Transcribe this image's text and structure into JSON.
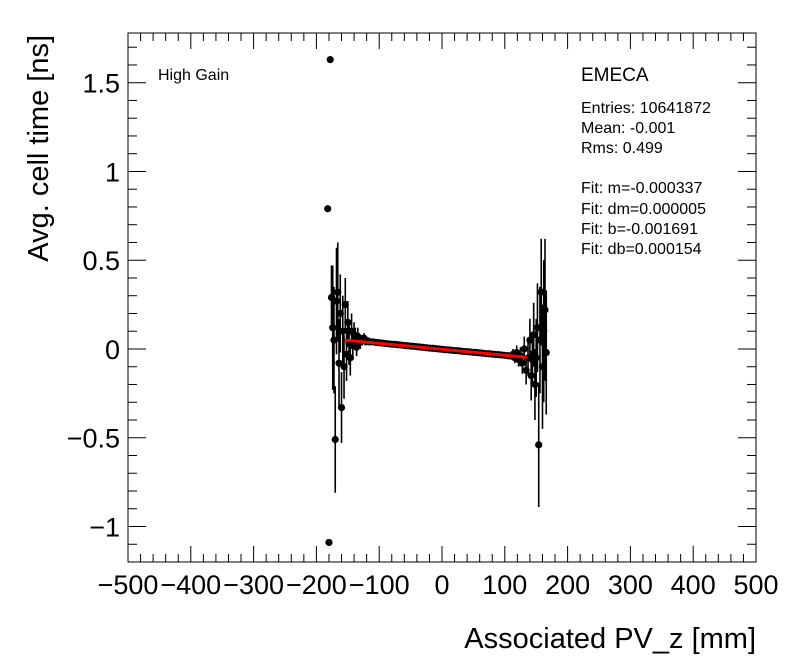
{
  "chart_data": {
    "type": "scatter",
    "title": "",
    "xlabel": "Associated PV_z [mm]",
    "ylabel": "Avg. cell time [ns]",
    "xlim": [
      -500,
      500
    ],
    "ylim": [
      -1.2,
      1.78
    ],
    "xticks": [
      -500,
      -400,
      -300,
      -200,
      -100,
      0,
      100,
      200,
      300,
      400,
      500
    ],
    "xtick_labels": [
      "−500",
      "−400",
      "−300",
      "−200",
      "−100",
      "0",
      "100",
      "200",
      "300",
      "400",
      "500"
    ],
    "yticks": [
      -1,
      -0.5,
      0,
      0.5,
      1,
      1.5
    ],
    "ytick_labels": [
      "−1",
      "−0.5",
      "0",
      "0.5",
      "1",
      "1.5"
    ],
    "grid": false,
    "marker_color": "#000000",
    "fit_color": "#ff0000",
    "annotations": {
      "gain": "High Gain",
      "region": "EMECA",
      "entries": "Entries: 10641872",
      "mean": "Mean: -0.001",
      "rms": "Rms: 0.499",
      "fit_m": "Fit: m=-0.000337",
      "fit_dm": "Fit: dm=0.000005",
      "fit_b": "Fit: b=-0.001691",
      "fit_db": "Fit: db=0.000154"
    },
    "fit_line": {
      "x": [
        -155,
        135
      ],
      "y": [
        0.05,
        -0.047
      ]
    },
    "points": [
      {
        "x": -178,
        "y": 1.63,
        "e": 0.0
      },
      {
        "x": -180,
        "y": -1.09,
        "e": 0.0
      },
      {
        "x": -182,
        "y": 0.79,
        "e": 0.0
      },
      {
        "x": -176,
        "y": 0.29,
        "e": 0.18
      },
      {
        "x": -174,
        "y": 0.12,
        "e": 0.35
      },
      {
        "x": -172,
        "y": 0.05,
        "e": 0.3
      },
      {
        "x": -170,
        "y": -0.51,
        "e": 0.3
      },
      {
        "x": -168,
        "y": 0.27,
        "e": 0.3
      },
      {
        "x": -166,
        "y": 0.32,
        "e": 0.28
      },
      {
        "x": -164,
        "y": -0.08,
        "e": 0.25
      },
      {
        "x": -162,
        "y": 0.2,
        "e": 0.22
      },
      {
        "x": -160,
        "y": -0.33,
        "e": 0.2
      },
      {
        "x": -158,
        "y": 0.1,
        "e": 0.2
      },
      {
        "x": -156,
        "y": -0.1,
        "e": 0.18
      },
      {
        "x": -154,
        "y": 0.25,
        "e": 0.15
      },
      {
        "x": -152,
        "y": -0.03,
        "e": 0.15
      },
      {
        "x": -150,
        "y": 0.15,
        "e": 0.12
      },
      {
        "x": -148,
        "y": 0.03,
        "e": 0.12
      },
      {
        "x": -146,
        "y": -0.05,
        "e": 0.1
      },
      {
        "x": -144,
        "y": 0.1,
        "e": 0.1
      },
      {
        "x": -142,
        "y": 0.02,
        "e": 0.08
      },
      {
        "x": -140,
        "y": 0.08,
        "e": 0.07
      },
      {
        "x": -138,
        "y": 0.06,
        "e": 0.06
      },
      {
        "x": -136,
        "y": 0.01,
        "e": 0.05
      },
      {
        "x": -134,
        "y": 0.07,
        "e": 0.05
      },
      {
        "x": -132,
        "y": 0.05,
        "e": 0.04
      },
      {
        "x": -130,
        "y": 0.04,
        "e": 0.04
      },
      {
        "x": -127,
        "y": 0.05,
        "e": 0.03
      },
      {
        "x": -124,
        "y": 0.06,
        "e": 0.03
      },
      {
        "x": -121,
        "y": 0.04,
        "e": 0.02
      },
      {
        "x": -118,
        "y": 0.045,
        "e": 0.02
      },
      {
        "x": -115,
        "y": 0.04,
        "e": 0.02
      },
      {
        "x": -110,
        "y": 0.04,
        "e": 0.015
      },
      {
        "x": -105,
        "y": 0.037,
        "e": 0.01
      },
      {
        "x": -100,
        "y": 0.035,
        "e": 0.01
      },
      {
        "x": -95,
        "y": 0.033,
        "e": 0.01
      },
      {
        "x": -90,
        "y": 0.031,
        "e": 0.01
      },
      {
        "x": -85,
        "y": 0.029,
        "e": 0.01
      },
      {
        "x": -80,
        "y": 0.027,
        "e": 0.01
      },
      {
        "x": -75,
        "y": 0.026,
        "e": 0.01
      },
      {
        "x": -70,
        "y": 0.024,
        "e": 0.01
      },
      {
        "x": -65,
        "y": 0.022,
        "e": 0.01
      },
      {
        "x": -60,
        "y": 0.02,
        "e": 0.01
      },
      {
        "x": -55,
        "y": 0.018,
        "e": 0.01
      },
      {
        "x": -50,
        "y": 0.016,
        "e": 0.01
      },
      {
        "x": -45,
        "y": 0.015,
        "e": 0.01
      },
      {
        "x": -40,
        "y": 0.013,
        "e": 0.01
      },
      {
        "x": -35,
        "y": 0.011,
        "e": 0.01
      },
      {
        "x": -30,
        "y": 0.009,
        "e": 0.01
      },
      {
        "x": -25,
        "y": 0.007,
        "e": 0.01
      },
      {
        "x": -20,
        "y": 0.005,
        "e": 0.01
      },
      {
        "x": -15,
        "y": 0.004,
        "e": 0.01
      },
      {
        "x": -10,
        "y": 0.002,
        "e": 0.01
      },
      {
        "x": -5,
        "y": 0.0,
        "e": 0.01
      },
      {
        "x": 0,
        "y": -0.002,
        "e": 0.01
      },
      {
        "x": 5,
        "y": -0.004,
        "e": 0.01
      },
      {
        "x": 10,
        "y": -0.005,
        "e": 0.01
      },
      {
        "x": 15,
        "y": -0.007,
        "e": 0.01
      },
      {
        "x": 20,
        "y": -0.009,
        "e": 0.01
      },
      {
        "x": 25,
        "y": -0.01,
        "e": 0.01
      },
      {
        "x": 30,
        "y": -0.012,
        "e": 0.01
      },
      {
        "x": 35,
        "y": -0.014,
        "e": 0.01
      },
      {
        "x": 40,
        "y": -0.015,
        "e": 0.01
      },
      {
        "x": 45,
        "y": -0.017,
        "e": 0.01
      },
      {
        "x": 50,
        "y": -0.019,
        "e": 0.01
      },
      {
        "x": 55,
        "y": -0.02,
        "e": 0.01
      },
      {
        "x": 60,
        "y": -0.022,
        "e": 0.01
      },
      {
        "x": 65,
        "y": -0.024,
        "e": 0.01
      },
      {
        "x": 70,
        "y": -0.026,
        "e": 0.01
      },
      {
        "x": 75,
        "y": -0.027,
        "e": 0.01
      },
      {
        "x": 80,
        "y": -0.029,
        "e": 0.01
      },
      {
        "x": 85,
        "y": -0.031,
        "e": 0.01
      },
      {
        "x": 90,
        "y": -0.032,
        "e": 0.012
      },
      {
        "x": 95,
        "y": -0.034,
        "e": 0.015
      },
      {
        "x": 100,
        "y": -0.036,
        "e": 0.015
      },
      {
        "x": 105,
        "y": -0.038,
        "e": 0.02
      },
      {
        "x": 110,
        "y": -0.04,
        "e": 0.02
      },
      {
        "x": 113,
        "y": -0.03,
        "e": 0.03
      },
      {
        "x": 116,
        "y": -0.05,
        "e": 0.03
      },
      {
        "x": 119,
        "y": -0.02,
        "e": 0.04
      },
      {
        "x": 122,
        "y": -0.06,
        "e": 0.04
      },
      {
        "x": 125,
        "y": -0.04,
        "e": 0.05
      },
      {
        "x": 128,
        "y": -0.08,
        "e": 0.06
      },
      {
        "x": 131,
        "y": 0.0,
        "e": 0.07
      },
      {
        "x": 134,
        "y": -0.12,
        "e": 0.08
      },
      {
        "x": 137,
        "y": -0.05,
        "e": 0.1
      },
      {
        "x": 140,
        "y": 0.05,
        "e": 0.12
      },
      {
        "x": 142,
        "y": -0.15,
        "e": 0.14
      },
      {
        "x": 144,
        "y": -0.06,
        "e": 0.15
      },
      {
        "x": 146,
        "y": 0.08,
        "e": 0.18
      },
      {
        "x": 148,
        "y": -0.2,
        "e": 0.2
      },
      {
        "x": 150,
        "y": -0.05,
        "e": 0.22
      },
      {
        "x": 152,
        "y": 0.12,
        "e": 0.25
      },
      {
        "x": 154,
        "y": -0.54,
        "e": 0.35
      },
      {
        "x": 156,
        "y": 0.05,
        "e": 0.3
      },
      {
        "x": 158,
        "y": 0.32,
        "e": 0.3
      },
      {
        "x": 160,
        "y": -0.1,
        "e": 0.35
      },
      {
        "x": 162,
        "y": 0.1,
        "e": 0.4
      },
      {
        "x": 164,
        "y": 0.22,
        "e": 0.4
      },
      {
        "x": 166,
        "y": -0.02,
        "e": 0.35
      }
    ]
  }
}
